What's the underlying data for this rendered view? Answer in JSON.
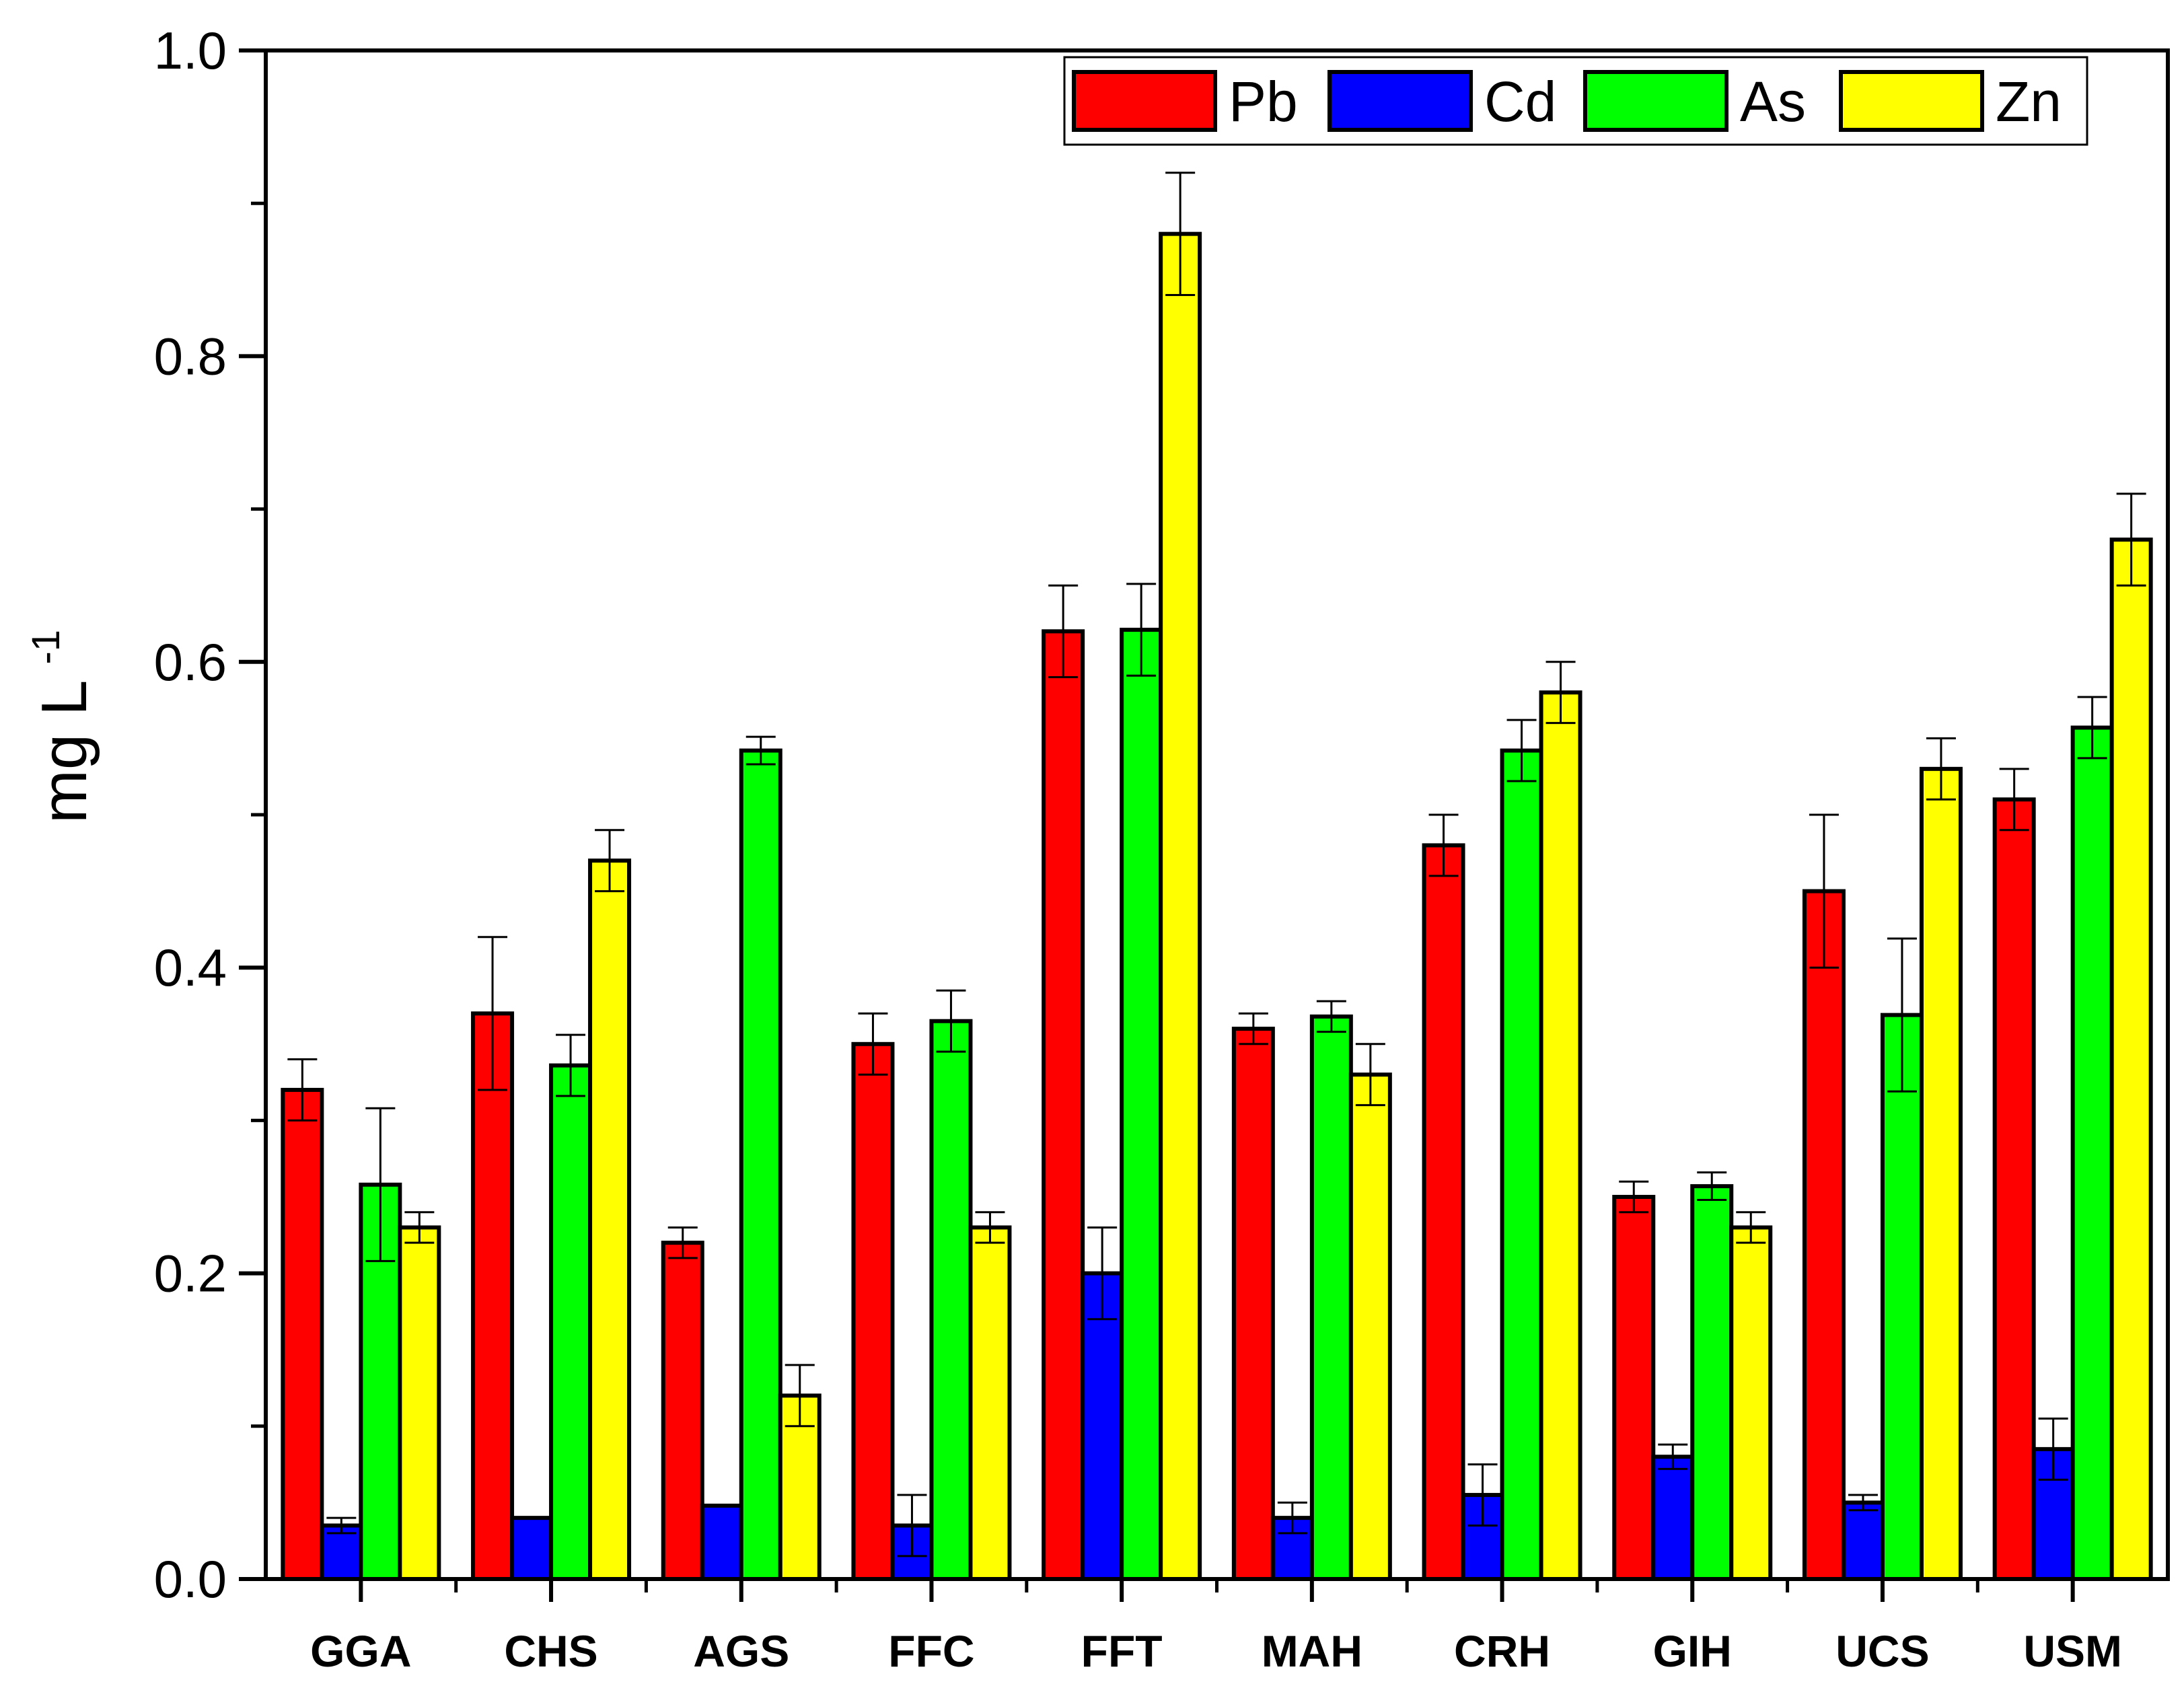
{
  "chart_data": {
    "type": "bar",
    "title": "",
    "xlabel": "",
    "ylabel": "mg L",
    "ylabel_superscript": "-1",
    "ylim": [
      0,
      1.0
    ],
    "y_ticks": [
      "0.0",
      "0.2",
      "0.4",
      "0.6",
      "0.8",
      "1.0"
    ],
    "y_tick_values": [
      0,
      0.2,
      0.4,
      0.6,
      0.8,
      1.0
    ],
    "grid": false,
    "legend_position": "top-right",
    "categories": [
      "GGA",
      "CHS",
      "AGS",
      "FFC",
      "FFT",
      "MAH",
      "CRH",
      "GIH",
      "UCS",
      "USM"
    ],
    "series": [
      {
        "name": "Pb",
        "color": "#ff0000",
        "values": [
          0.32,
          0.37,
          0.22,
          0.35,
          0.62,
          0.36,
          0.48,
          0.25,
          0.45,
          0.51
        ],
        "errors": [
          0.02,
          0.05,
          0.01,
          0.02,
          0.03,
          0.01,
          0.02,
          0.01,
          0.05,
          0.02
        ]
      },
      {
        "name": "Cd",
        "color": "#0000ff",
        "values": [
          0.035,
          0.04,
          0.048,
          0.035,
          0.2,
          0.04,
          0.055,
          0.08,
          0.05,
          0.085
        ],
        "errors": [
          0.005,
          0.0,
          0.0,
          0.02,
          0.03,
          0.01,
          0.02,
          0.008,
          0.005,
          0.02
        ]
      },
      {
        "name": "As",
        "color": "#00ff00",
        "values": [
          0.258,
          0.336,
          0.542,
          0.365,
          0.621,
          0.368,
          0.542,
          0.257,
          0.369,
          0.557
        ],
        "errors": [
          0.05,
          0.02,
          0.009,
          0.02,
          0.03,
          0.01,
          0.02,
          0.009,
          0.05,
          0.02
        ]
      },
      {
        "name": "Zn",
        "color": "#ffff00",
        "values": [
          0.23,
          0.47,
          0.12,
          0.23,
          0.88,
          0.33,
          0.58,
          0.23,
          0.53,
          0.68
        ],
        "errors": [
          0.01,
          0.02,
          0.02,
          0.01,
          0.04,
          0.02,
          0.02,
          0.01,
          0.02,
          0.03
        ]
      }
    ]
  }
}
